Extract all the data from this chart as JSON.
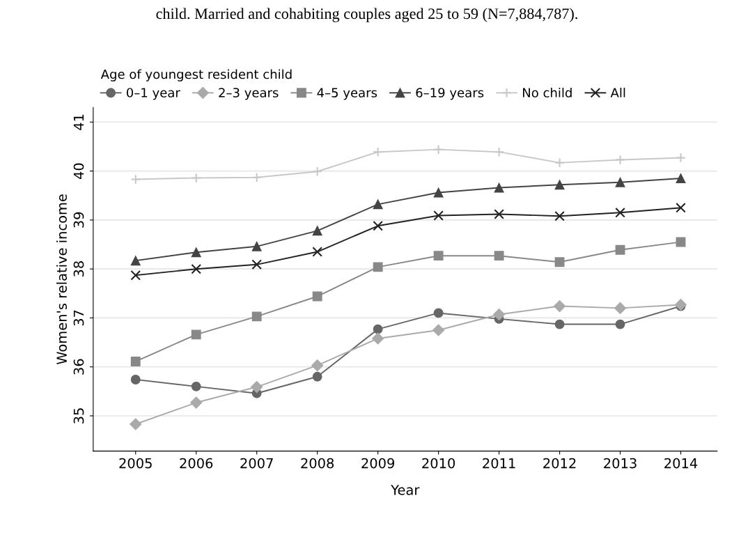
{
  "chart_data": {
    "type": "line",
    "title": "child. Married and cohabiting couples aged 25 to 59 (N=7,884,787).",
    "xlabel": "Year",
    "ylabel": "Women's relative income",
    "legend_title": "Age of youngest resident child",
    "x": [
      2005,
      2006,
      2007,
      2008,
      2009,
      2010,
      2011,
      2012,
      2013,
      2014
    ],
    "series": [
      {
        "name": "0–1 year",
        "color": "#666666",
        "marker": "circle",
        "values": [
          35.74,
          35.6,
          35.46,
          35.8,
          36.77,
          37.1,
          36.98,
          36.87,
          36.87,
          37.24
        ]
      },
      {
        "name": "2–3 years",
        "color": "#aaaaaa",
        "marker": "diamond",
        "values": [
          34.83,
          35.27,
          35.59,
          36.03,
          36.58,
          36.75,
          37.07,
          37.24,
          37.2,
          37.27
        ]
      },
      {
        "name": "4–5 years",
        "color": "#888888",
        "marker": "square",
        "values": [
          36.11,
          36.66,
          37.03,
          37.44,
          38.04,
          38.27,
          38.27,
          38.14,
          38.39,
          38.55
        ]
      },
      {
        "name": "6–19 years",
        "color": "#444444",
        "marker": "triangle",
        "values": [
          38.17,
          38.34,
          38.46,
          38.78,
          39.32,
          39.56,
          39.66,
          39.72,
          39.77,
          39.85
        ]
      },
      {
        "name": "No child",
        "color": "#c8c8c8",
        "marker": "plus",
        "values": [
          39.83,
          39.86,
          39.87,
          39.99,
          40.39,
          40.44,
          40.39,
          40.17,
          40.23,
          40.27
        ]
      },
      {
        "name": "All",
        "color": "#222222",
        "marker": "cross",
        "values": [
          37.87,
          38.0,
          38.09,
          38.35,
          38.88,
          39.09,
          39.12,
          39.08,
          39.15,
          39.25
        ]
      }
    ],
    "xlim": [
      2004.3,
      2014.6
    ],
    "ylim": [
      34.28,
      41.3
    ],
    "xticks": [
      2005,
      2006,
      2007,
      2008,
      2009,
      2010,
      2011,
      2012,
      2013,
      2014
    ],
    "yticks": [
      35,
      36,
      37,
      38,
      39,
      40,
      41
    ],
    "grid": "y",
    "legend": "top"
  }
}
